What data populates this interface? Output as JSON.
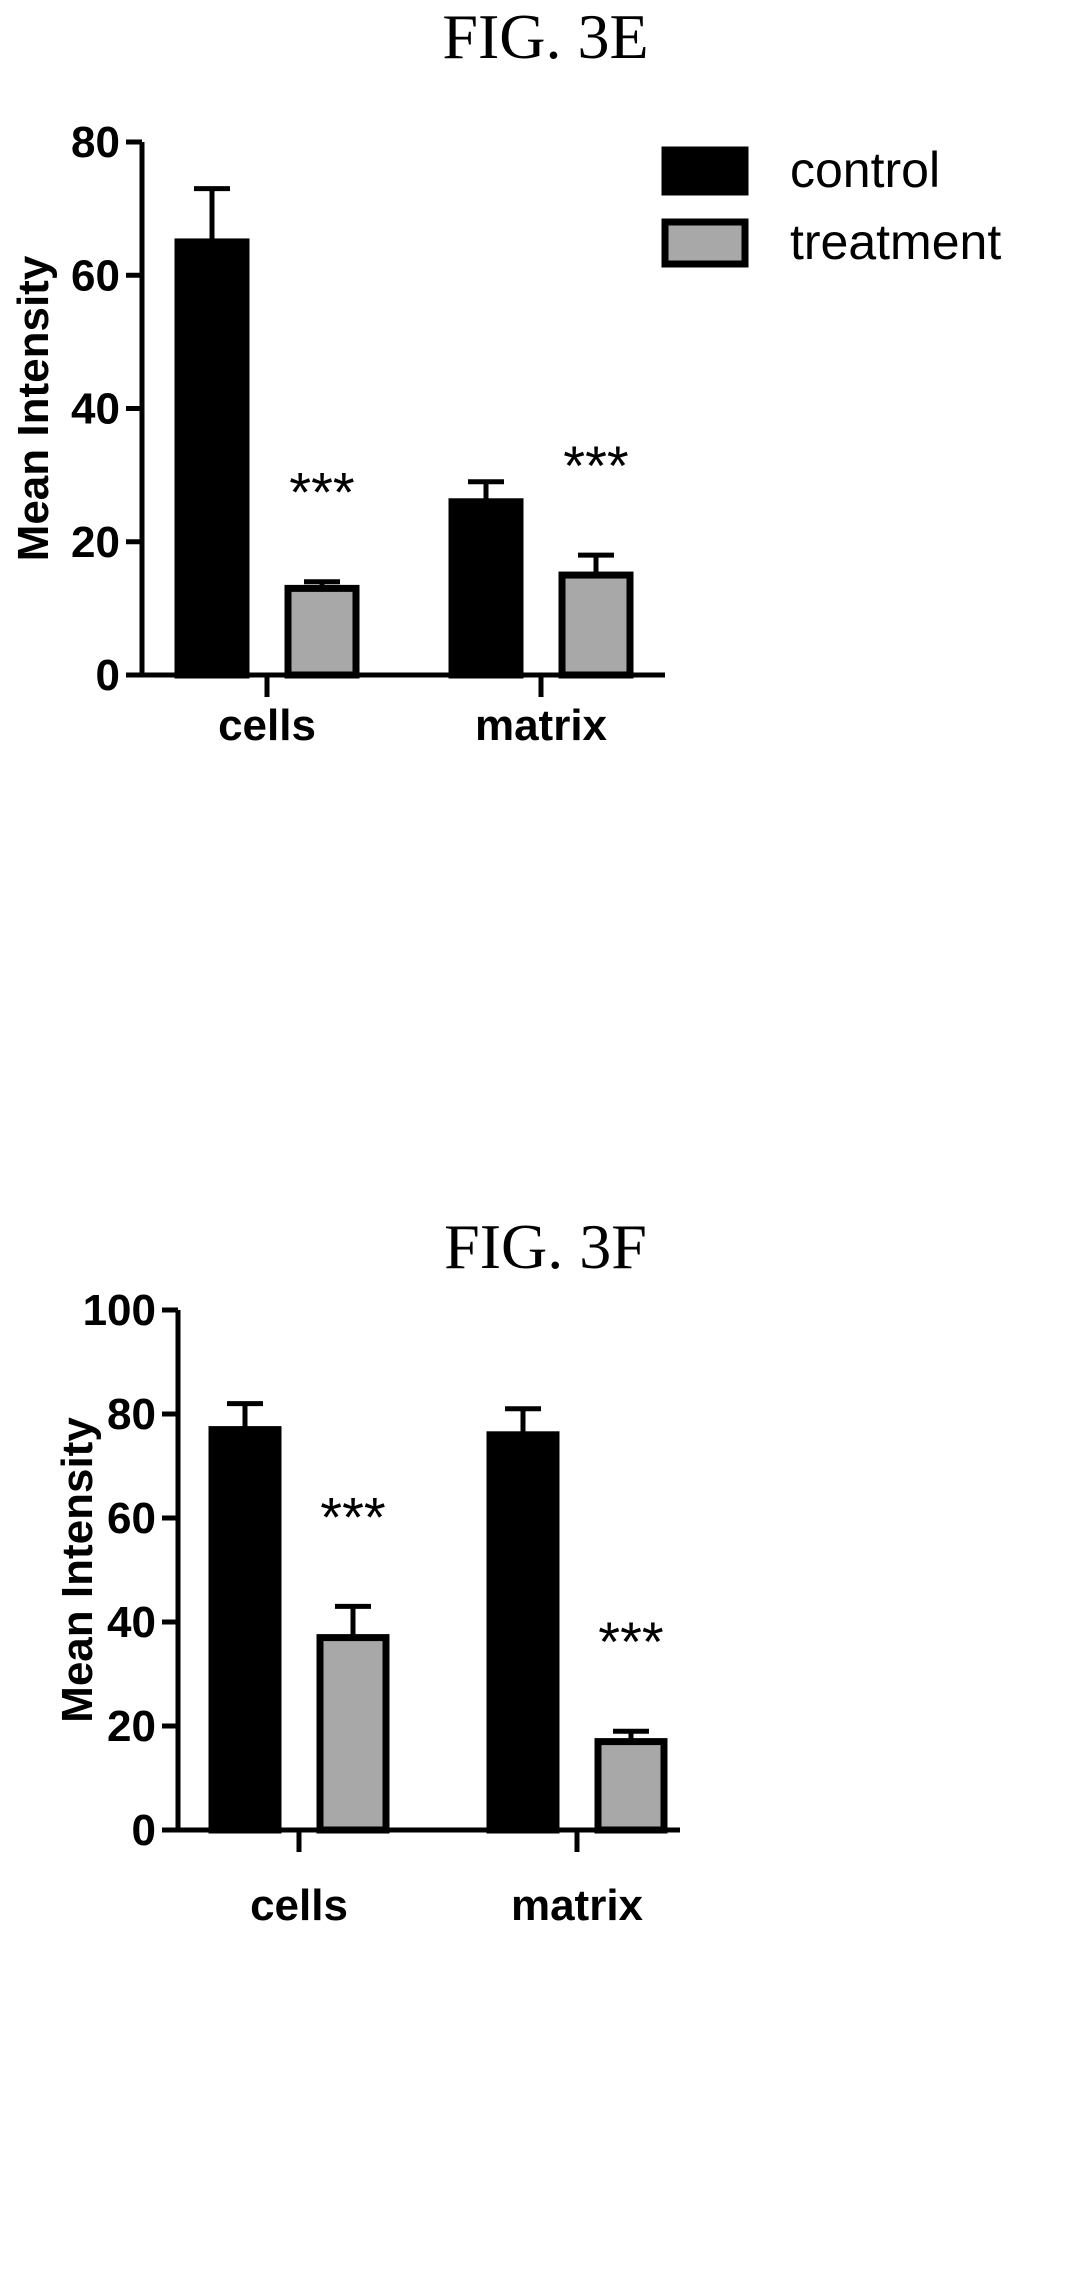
{
  "figures": [
    {
      "id": "e",
      "title": "FIG. 3E"
    },
    {
      "id": "f",
      "title": "FIG. 3F"
    }
  ],
  "colors": {
    "control": "#000000",
    "treatment": "#a8a8a8"
  },
  "chart_data": [
    {
      "type": "bar",
      "title": "FIG. 3E",
      "categories": [
        "cells",
        "matrix"
      ],
      "series": [
        {
          "name": "control",
          "values": [
            65,
            26
          ],
          "errors": [
            8,
            3
          ]
        },
        {
          "name": "treatment",
          "values": [
            13,
            15
          ],
          "errors": [
            1,
            3
          ]
        }
      ],
      "annotations": [
        {
          "category": "cells",
          "text": "***"
        },
        {
          "category": "matrix",
          "text": "***"
        }
      ],
      "ylabel": "Mean Intensity",
      "xlabel": "",
      "ylim": [
        0,
        80
      ],
      "yticks": [
        0,
        20,
        40,
        60,
        80
      ],
      "legend": "top-right",
      "grid": false
    },
    {
      "type": "bar",
      "title": "FIG. 3F",
      "categories": [
        "cells",
        "matrix"
      ],
      "series": [
        {
          "name": "control",
          "values": [
            77,
            76
          ],
          "errors": [
            5,
            5
          ]
        },
        {
          "name": "treatment",
          "values": [
            37,
            17
          ],
          "errors": [
            6,
            2
          ]
        }
      ],
      "annotations": [
        {
          "category": "cells",
          "text": "***"
        },
        {
          "category": "matrix",
          "text": "***"
        }
      ],
      "ylabel": "Mean Intensity",
      "xlabel": "",
      "ylim": [
        0,
        100
      ],
      "yticks": [
        0,
        20,
        40,
        60,
        80,
        100
      ],
      "legend": "none",
      "grid": false
    }
  ]
}
